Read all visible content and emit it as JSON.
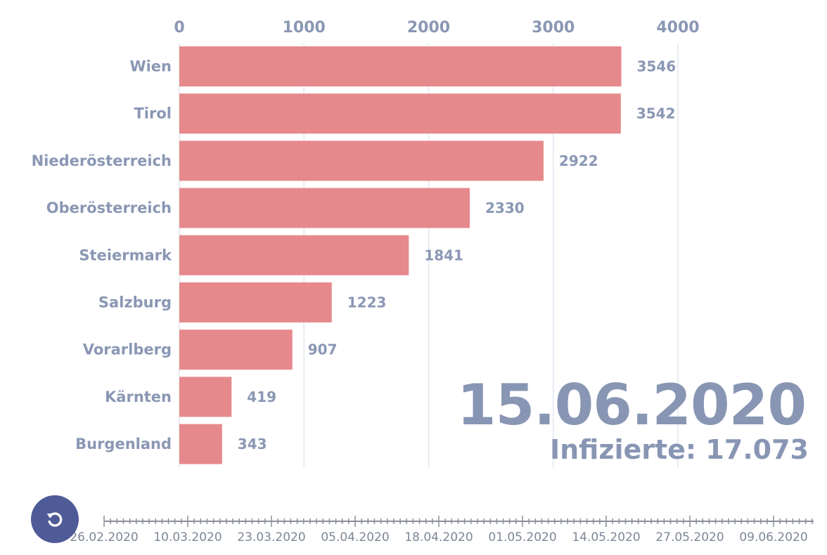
{
  "chart_data": {
    "type": "bar",
    "orientation": "horizontal",
    "categories": [
      "Wien",
      "Tirol",
      "Niederösterreich",
      "Oberösterreich",
      "Steiermark",
      "Salzburg",
      "Vorarlberg",
      "Kärnten",
      "Burgenland"
    ],
    "values": [
      3546,
      3542,
      2922,
      2330,
      1841,
      1223,
      907,
      419,
      343
    ],
    "x_ticks": [
      "0",
      "1000",
      "2000",
      "3000",
      "4000"
    ],
    "xlim": [
      0,
      4000
    ],
    "grid": true,
    "bar_color": "#e6898c",
    "title": "",
    "xlabel": "",
    "ylabel": ""
  },
  "overlay": {
    "date": "15.06.2020",
    "total": "Infizierte: 17.073"
  },
  "timeline": {
    "labels": [
      "26.02.2020",
      "10.03.2020",
      "23.03.2020",
      "05.04.2020",
      "18.04.2020",
      "01.05.2020",
      "14.05.2020",
      "27.05.2020",
      "09.06.2020"
    ]
  },
  "controls": {
    "replay_icon": "replay-icon",
    "replay_color": "#4f5b97"
  }
}
